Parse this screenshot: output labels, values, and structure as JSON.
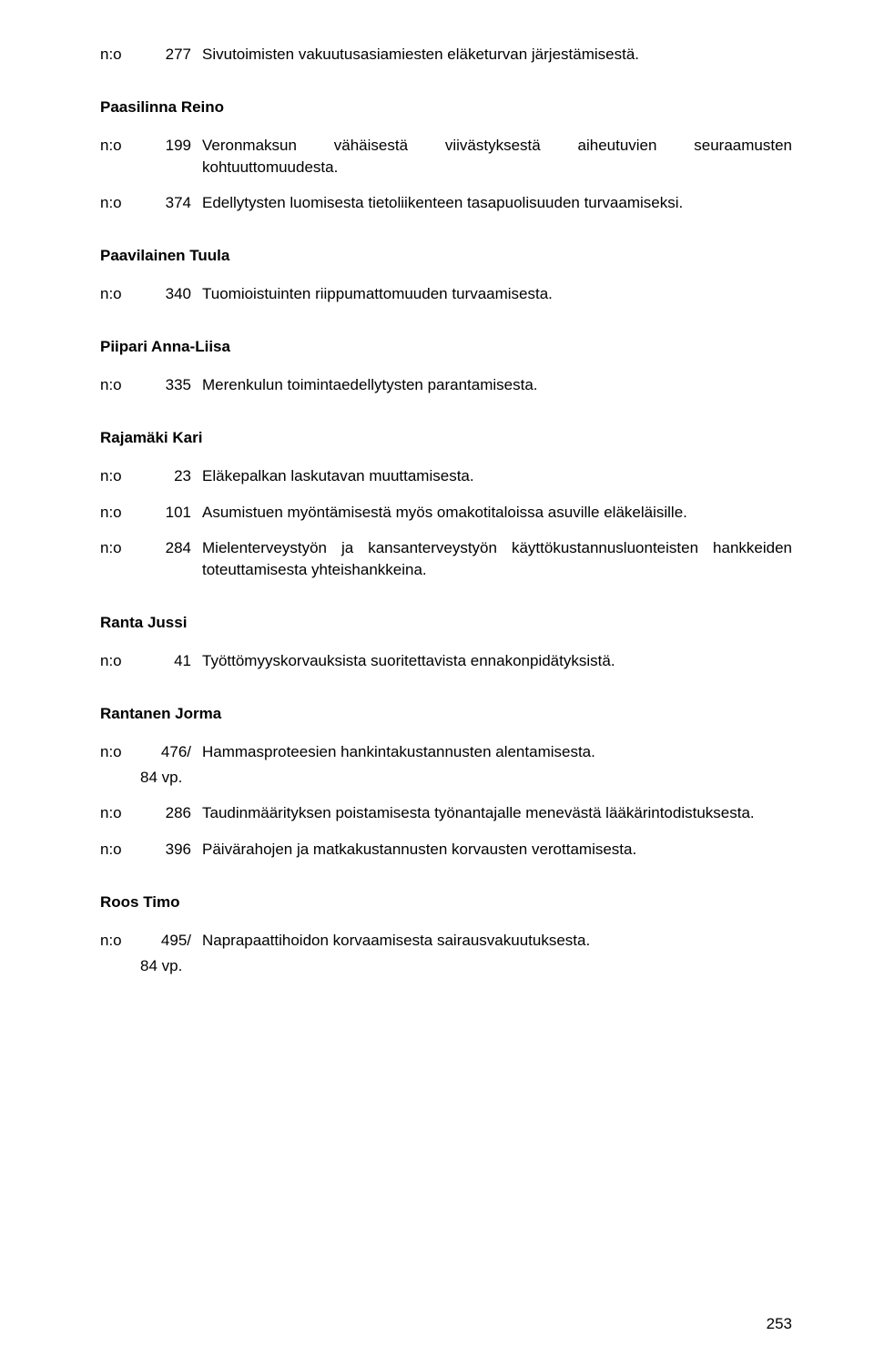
{
  "entries_top": [
    {
      "no": "n:o",
      "num": "277",
      "text": "Sivutoimisten vakuutusasiamiesten eläketurvan järjestämisestä."
    }
  ],
  "persons": [
    {
      "name": "Paasilinna Reino",
      "entries": [
        {
          "no": "n:o",
          "num": "199",
          "text": "Veronmaksun vähäisestä viivästyksestä aiheutuvien seuraamusten kohtuuttomuudesta."
        },
        {
          "no": "n:o",
          "num": "374",
          "text": "Edellytysten luomisesta tietoliikenteen tasapuolisuuden turvaamiseksi."
        }
      ]
    },
    {
      "name": "Paavilainen Tuula",
      "entries": [
        {
          "no": "n:o",
          "num": "340",
          "text": "Tuomioistuinten riippumattomuuden turvaamisesta."
        }
      ]
    },
    {
      "name": "Piipari Anna-Liisa",
      "entries": [
        {
          "no": "n:o",
          "num": "335",
          "text": "Merenkulun toimintaedellytysten parantamisesta."
        }
      ]
    },
    {
      "name": "Rajamäki Kari",
      "entries": [
        {
          "no": "n:o",
          "num": "23",
          "text": "Eläkepalkan laskutavan muuttamisesta."
        },
        {
          "no": "n:o",
          "num": "101",
          "text": "Asumistuen myöntämisestä myös omakotitaloissa asuville eläkeläisille."
        },
        {
          "no": "n:o",
          "num": "284",
          "text": "Mielenterveystyön ja kansanterveystyön käyttökustannusluonteisten hankkeiden toteuttamisesta yhteishankkeina."
        }
      ]
    },
    {
      "name": "Ranta Jussi",
      "entries": [
        {
          "no": "n:o",
          "num": "41",
          "text": "Työttömyyskorvauksista suoritettavista ennakonpidätyksistä."
        }
      ]
    },
    {
      "name": "Rantanen Jorma",
      "entries": [
        {
          "no": "n:o",
          "num": "476/",
          "text": "Hammasproteesien hankintakustannusten alentamisesta.",
          "sub": "84 vp."
        },
        {
          "no": "n:o",
          "num": "286",
          "text": "Taudinmäärityksen poistamisesta työnantajalle menevästä lääkärintodistuksesta."
        },
        {
          "no": "n:o",
          "num": "396",
          "text": "Päivärahojen ja matkakustannusten korvausten verottamisesta."
        }
      ]
    },
    {
      "name": "Roos Timo",
      "entries": [
        {
          "no": "n:o",
          "num": "495/",
          "text": "Naprapaattihoidon korvaamisesta sairausvakuutuksesta.",
          "sub": "84 vp."
        }
      ]
    }
  ],
  "page_number": "253"
}
